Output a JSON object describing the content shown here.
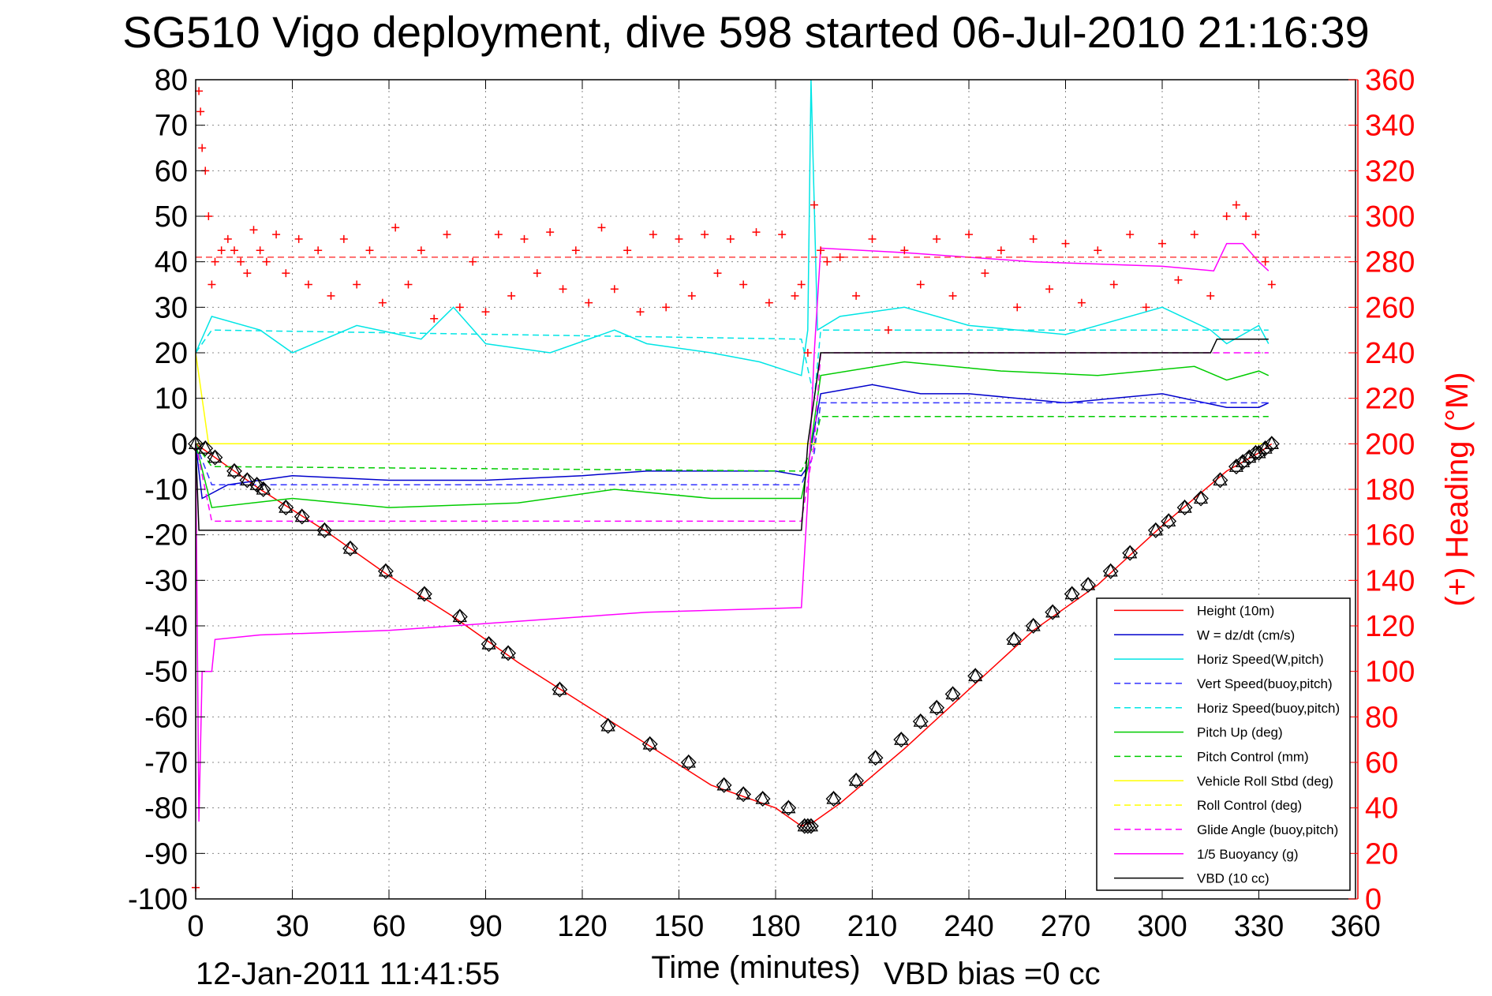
{
  "chart_data": {
    "type": "line",
    "title": "SG510 Vigo deployment, dive 598 started 06-Jul-2010 21:16:39",
    "xlabel": "Time (minutes)",
    "xlim": [
      0,
      360
    ],
    "ylim": [
      -100,
      80
    ],
    "y2label": "(+) Heading (°M)",
    "y2lim": [
      0,
      360
    ],
    "grid": true,
    "legend_position": "bottom-right",
    "x_ticks": [
      "0",
      "30",
      "60",
      "90",
      "120",
      "150",
      "180",
      "210",
      "240",
      "270",
      "300",
      "330",
      "360"
    ],
    "y_ticks": [
      "80",
      "70",
      "60",
      "50",
      "40",
      "30",
      "20",
      "10",
      "0",
      "-10",
      "-20",
      "-30",
      "-40",
      "-50",
      "-60",
      "-70",
      "-80",
      "-90",
      "-100"
    ],
    "y2_ticks": [
      "360",
      "340",
      "320",
      "300",
      "280",
      "260",
      "240",
      "220",
      "200",
      "180",
      "160",
      "140",
      "120",
      "100",
      "80",
      "60",
      "40",
      "20",
      "0"
    ],
    "series": [
      {
        "name": "Height (10m)",
        "color": "#ff0000",
        "dash": "solid",
        "x": [
          0,
          10,
          20,
          40,
          60,
          80,
          100,
          120,
          140,
          160,
          180,
          188,
          192,
          200,
          220,
          240,
          260,
          280,
          300,
          320,
          330,
          334
        ],
        "y": [
          0,
          -5,
          -10,
          -19,
          -29,
          -38,
          -48,
          -57,
          -66,
          -75,
          -80,
          -84,
          -83,
          -79,
          -67,
          -54,
          -41,
          -31,
          -18,
          -6,
          -2,
          0
        ]
      },
      {
        "name": "W = dz/dt (cm/s)",
        "color": "#0000cc",
        "dash": "solid",
        "x": [
          0,
          2,
          10,
          30,
          60,
          90,
          120,
          140,
          160,
          180,
          188,
          190,
          194,
          210,
          225,
          240,
          270,
          300,
          320,
          330,
          333
        ],
        "y": [
          0,
          -12,
          -9,
          -7,
          -8,
          -8,
          -7,
          -6,
          -6,
          -6,
          -7,
          -5,
          11,
          13,
          11,
          11,
          9,
          11,
          8,
          8,
          9
        ]
      },
      {
        "name": "Horiz Speed(W,pitch)",
        "color": "#00e5e5",
        "dash": "solid",
        "x": [
          0,
          5,
          20,
          30,
          50,
          70,
          80,
          90,
          110,
          130,
          140,
          160,
          175,
          188,
          190,
          191,
          193,
          200,
          220,
          240,
          270,
          300,
          315,
          320,
          330,
          333
        ],
        "y": [
          20,
          28,
          25,
          20,
          26,
          23,
          30,
          22,
          20,
          25,
          22,
          20,
          18,
          15,
          25,
          80,
          25,
          28,
          30,
          26,
          24,
          30,
          25,
          22,
          26,
          22
        ]
      },
      {
        "name": "Vert Speed(buoy,pitch)",
        "color": "#3333ff",
        "dash": "dashed",
        "x": [
          0,
          5,
          188,
          192,
          194,
          333
        ],
        "y": [
          0,
          -9,
          -9,
          -2,
          9,
          9
        ]
      },
      {
        "name": "Horiz Speed(buoy,pitch)",
        "color": "#00e5e5",
        "dash": "dashed",
        "x": [
          0,
          5,
          188,
          192,
          194,
          333
        ],
        "y": [
          20,
          25,
          23,
          10,
          25,
          25
        ]
      },
      {
        "name": "Pitch Up (deg)",
        "color": "#00cc00",
        "dash": "solid",
        "x": [
          0,
          5,
          30,
          60,
          100,
          130,
          160,
          188,
          190,
          194,
          220,
          250,
          280,
          310,
          320,
          330,
          333
        ],
        "y": [
          0,
          -14,
          -12,
          -14,
          -13,
          -10,
          -12,
          -12,
          -5,
          15,
          18,
          16,
          15,
          17,
          14,
          16,
          15
        ]
      },
      {
        "name": "Pitch Control (mm)",
        "color": "#00cc00",
        "dash": "dashed",
        "x": [
          0,
          5,
          188,
          192,
          194,
          333
        ],
        "y": [
          0,
          -5,
          -6,
          0,
          6,
          6
        ]
      },
      {
        "name": "Vehicle Roll Stbd (deg)",
        "color": "#ffff00",
        "dash": "solid",
        "x": [
          0,
          4,
          8,
          188,
          192,
          194,
          333
        ],
        "y": [
          20,
          0,
          0,
          0,
          0,
          0,
          0
        ]
      },
      {
        "name": "Roll Control (deg)",
        "color": "#ffff00",
        "dash": "dashed",
        "x": [
          0,
          5,
          188,
          192,
          194,
          333
        ],
        "y": [
          0,
          0,
          0,
          0,
          0,
          0
        ]
      },
      {
        "name": "Glide Angle (buoy,pitch)",
        "color": "#ff00ff",
        "dash": "dashed",
        "x": [
          0,
          5,
          188,
          192,
          194,
          333
        ],
        "y": [
          0,
          -17,
          -17,
          0,
          20,
          20
        ]
      },
      {
        "name": "1/5 Buoyancy (g)",
        "color": "#ff00ff",
        "dash": "solid",
        "x": [
          0,
          1,
          2,
          5,
          6,
          20,
          60,
          100,
          140,
          188,
          190,
          192,
          194,
          220,
          260,
          300,
          316,
          320,
          325,
          330,
          333
        ],
        "y": [
          0,
          -83,
          -50,
          -50,
          -43,
          -42,
          -41,
          -39,
          -37,
          -36,
          -12,
          20,
          43,
          42,
          40,
          39,
          38,
          44,
          44,
          40,
          38
        ]
      },
      {
        "name": "VBD (10 cc)",
        "color": "#000000",
        "dash": "solid",
        "x": [
          0,
          1,
          2,
          188,
          190,
          194,
          315,
          317,
          333
        ],
        "y": [
          0,
          -19,
          -19,
          -19,
          0,
          20,
          20,
          23,
          23
        ]
      }
    ],
    "height_markers": {
      "x": [
        0,
        3,
        6,
        12,
        16,
        19,
        21,
        28,
        33,
        40,
        48,
        59,
        71,
        82,
        91,
        97,
        113,
        128,
        141,
        153,
        164,
        170,
        176,
        184,
        189,
        190,
        191,
        198,
        205,
        211,
        219,
        225,
        230,
        235,
        242,
        254,
        260,
        266,
        272,
        277,
        284,
        290,
        298,
        302,
        307,
        312,
        318,
        323,
        325,
        327,
        329,
        330,
        332,
        334
      ],
      "y": [
        0,
        -1,
        -3,
        -6,
        -8,
        -9,
        -10,
        -14,
        -16,
        -19,
        -23,
        -28,
        -33,
        -38,
        -44,
        -46,
        -54,
        -62,
        -66,
        -70,
        -75,
        -77,
        -78,
        -80,
        -84,
        -84,
        -84,
        -78,
        -74,
        -69,
        -65,
        -61,
        -58,
        -55,
        -51,
        -43,
        -40,
        -37,
        -33,
        -31,
        -28,
        -24,
        -19,
        -17,
        -14,
        -12,
        -8,
        -5,
        -4,
        -3,
        -2,
        -2,
        -1,
        0
      ]
    },
    "heading_points": {
      "axis": "right",
      "marker": "+",
      "color": "#ff0000",
      "mean": 282,
      "x": [
        0,
        1,
        1.5,
        2,
        3,
        4,
        5,
        6,
        8,
        10,
        12,
        14,
        16,
        18,
        20,
        22,
        25,
        28,
        32,
        35,
        38,
        42,
        46,
        50,
        54,
        58,
        62,
        66,
        70,
        74,
        78,
        82,
        86,
        90,
        94,
        98,
        102,
        106,
        110,
        114,
        118,
        122,
        126,
        130,
        134,
        138,
        142,
        146,
        150,
        154,
        158,
        162,
        166,
        170,
        174,
        178,
        182,
        186,
        188,
        190,
        192,
        194,
        196,
        200,
        205,
        210,
        215,
        220,
        225,
        230,
        235,
        240,
        245,
        250,
        255,
        260,
        265,
        270,
        275,
        280,
        285,
        290,
        295,
        300,
        305,
        310,
        315,
        320,
        323,
        326,
        329,
        332,
        334
      ],
      "y": [
        5,
        355,
        346,
        330,
        320,
        300,
        270,
        280,
        285,
        290,
        285,
        280,
        275,
        294,
        285,
        280,
        292,
        275,
        290,
        270,
        285,
        265,
        290,
        270,
        285,
        262,
        295,
        270,
        285,
        255,
        292,
        260,
        280,
        258,
        292,
        265,
        290,
        275,
        293,
        268,
        285,
        262,
        295,
        268,
        285,
        258,
        292,
        260,
        290,
        265,
        292,
        275,
        290,
        270,
        293,
        262,
        292,
        265,
        270,
        240,
        305,
        285,
        280,
        282,
        265,
        290,
        250,
        285,
        270,
        290,
        265,
        292,
        275,
        285,
        260,
        290,
        268,
        288,
        262,
        285,
        270,
        292,
        260,
        288,
        272,
        292,
        265,
        300,
        305,
        300,
        292,
        280,
        270
      ]
    }
  },
  "footer": {
    "timestamp": "12-Jan-2011 11:41:55",
    "vbd_bias": "VBD bias =0 cc"
  }
}
